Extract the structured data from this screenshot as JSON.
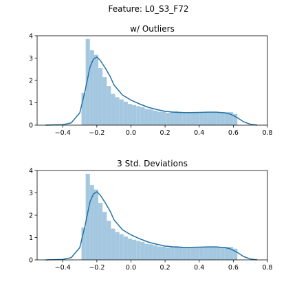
{
  "figure": {
    "suptitle": "Feature: L0_S3_F72"
  },
  "colors": {
    "bar": "#a5c8e1",
    "kde": "#2471a3",
    "axis": "#000000"
  },
  "chart_data": [
    {
      "type": "bar",
      "title": "w/ Outliers",
      "xlabel": "",
      "ylabel": "",
      "xlim": [
        -0.55,
        0.8
      ],
      "ylim": [
        0,
        4
      ],
      "xticks": [
        -0.4,
        -0.2,
        0.0,
        0.2,
        0.4,
        0.6,
        0.8
      ],
      "xtick_labels": [
        "−0.4",
        "−0.2",
        "0.0",
        "0.2",
        "0.4",
        "0.6",
        "0.8"
      ],
      "yticks": [
        0,
        1,
        2,
        3,
        4
      ],
      "ytick_labels": [
        "0",
        "1",
        "2",
        "3",
        "4"
      ],
      "bin_start": -0.29,
      "bin_width": 0.0247,
      "values": [
        1.45,
        3.85,
        3.35,
        3.15,
        2.55,
        2.15,
        1.75,
        1.4,
        1.25,
        1.15,
        1.05,
        0.95,
        0.9,
        0.85,
        0.8,
        0.72,
        0.7,
        0.65,
        0.6,
        0.6,
        0.55,
        0.6,
        0.62,
        0.6,
        0.58,
        0.58,
        0.58,
        0.58,
        0.58,
        0.58,
        0.58,
        0.58,
        0.58,
        0.58,
        0.58,
        0.58,
        0.5
      ],
      "kde": {
        "x": [
          -0.5,
          -0.4,
          -0.35,
          -0.3,
          -0.27,
          -0.24,
          -0.22,
          -0.2,
          -0.18,
          -0.15,
          -0.12,
          -0.1,
          -0.05,
          0.0,
          0.05,
          0.1,
          0.15,
          0.2,
          0.25,
          0.3,
          0.35,
          0.4,
          0.45,
          0.5,
          0.55,
          0.58,
          0.62,
          0.66,
          0.7,
          0.74
        ],
        "y": [
          0.0,
          0.02,
          0.1,
          0.55,
          1.5,
          2.6,
          2.95,
          3.05,
          2.9,
          2.55,
          2.15,
          1.8,
          1.35,
          1.12,
          0.95,
          0.8,
          0.7,
          0.62,
          0.58,
          0.56,
          0.56,
          0.57,
          0.58,
          0.58,
          0.55,
          0.5,
          0.35,
          0.15,
          0.04,
          0.0
        ]
      }
    },
    {
      "type": "bar",
      "title": "3 Std. Deviations",
      "xlabel": "",
      "ylabel": "",
      "xlim": [
        -0.55,
        0.8
      ],
      "ylim": [
        0,
        4
      ],
      "xticks": [
        -0.4,
        -0.2,
        0.0,
        0.2,
        0.4,
        0.6,
        0.8
      ],
      "xtick_labels": [
        "−0.4",
        "−0.2",
        "0.0",
        "0.2",
        "0.4",
        "0.6",
        "0.8"
      ],
      "yticks": [
        0,
        1,
        2,
        3,
        4
      ],
      "ytick_labels": [
        "0",
        "1",
        "2",
        "3",
        "4"
      ],
      "bin_start": -0.29,
      "bin_width": 0.0247,
      "values": [
        1.45,
        3.85,
        3.35,
        3.15,
        2.55,
        2.15,
        1.75,
        1.4,
        1.25,
        1.15,
        1.05,
        0.95,
        0.9,
        0.85,
        0.8,
        0.72,
        0.7,
        0.65,
        0.6,
        0.6,
        0.55,
        0.6,
        0.62,
        0.6,
        0.58,
        0.58,
        0.58,
        0.58,
        0.58,
        0.58,
        0.58,
        0.58,
        0.58,
        0.58,
        0.58,
        0.58,
        0.5
      ],
      "kde": {
        "x": [
          -0.5,
          -0.4,
          -0.35,
          -0.3,
          -0.27,
          -0.24,
          -0.22,
          -0.2,
          -0.18,
          -0.15,
          -0.12,
          -0.1,
          -0.05,
          0.0,
          0.05,
          0.1,
          0.15,
          0.2,
          0.25,
          0.3,
          0.35,
          0.4,
          0.45,
          0.5,
          0.55,
          0.58,
          0.62,
          0.66,
          0.7,
          0.74
        ],
        "y": [
          0.0,
          0.02,
          0.1,
          0.55,
          1.5,
          2.6,
          2.95,
          3.05,
          2.9,
          2.55,
          2.15,
          1.8,
          1.35,
          1.12,
          0.95,
          0.8,
          0.7,
          0.62,
          0.58,
          0.56,
          0.56,
          0.57,
          0.58,
          0.58,
          0.55,
          0.5,
          0.35,
          0.15,
          0.04,
          0.0
        ]
      }
    }
  ]
}
